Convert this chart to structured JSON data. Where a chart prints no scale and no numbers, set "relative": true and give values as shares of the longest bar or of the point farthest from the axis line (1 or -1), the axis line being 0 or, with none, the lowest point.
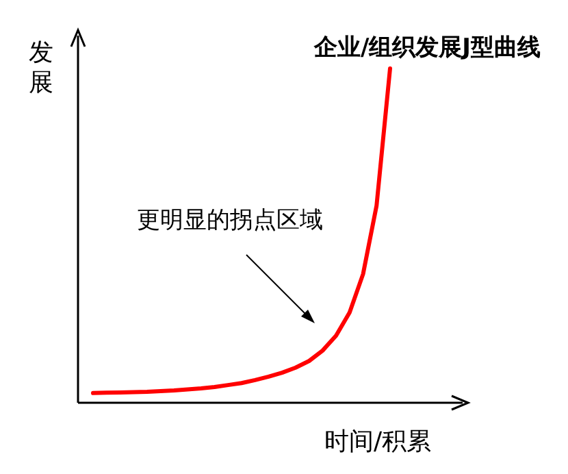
{
  "chart_data": {
    "type": "line",
    "title": "企业/组织发展J型曲线",
    "xlabel": "时间/积累",
    "ylabel": "发展",
    "relative": true,
    "annotations": [
      "更明显的拐点区域"
    ],
    "categories": [
      null,
      null,
      null,
      null,
      null,
      null,
      null,
      null,
      null,
      null,
      null,
      null,
      null,
      null,
      null,
      null,
      null,
      null,
      null,
      null,
      null,
      null,
      null
    ],
    "series": [
      {
        "color": "#ff0000",
        "values": [
          0.029,
          0.03,
          0.031,
          0.032,
          0.033,
          0.035,
          0.037,
          0.04,
          0.043,
          0.047,
          0.053,
          0.059,
          0.068,
          0.078,
          0.09,
          0.105,
          0.125,
          0.156,
          0.201,
          0.27,
          0.385,
          0.59,
          1
        ]
      }
    ]
  }
}
